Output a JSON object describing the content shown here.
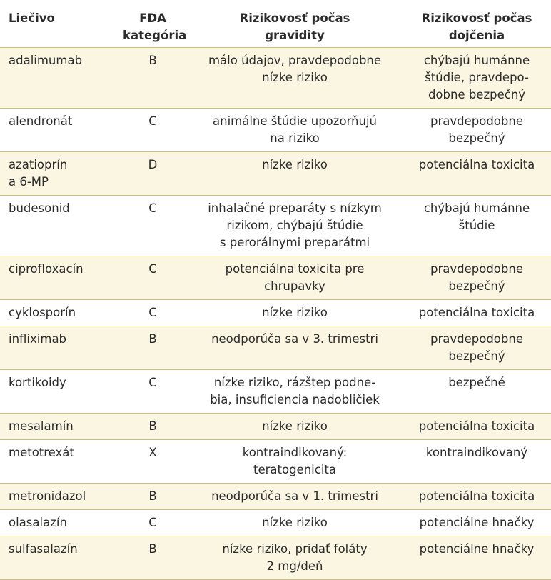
{
  "table": {
    "headers": {
      "drug": "Liečivo",
      "fda": [
        "FDA",
        "kategória"
      ],
      "pregnancy": [
        "Rizikovosť počas",
        "gravidity"
      ],
      "lactation": [
        "Rizikovosť počas",
        "dojčenia"
      ]
    },
    "rows": [
      {
        "drug": [
          "adalimumab"
        ],
        "fda": "B",
        "pregnancy": [
          "málo údajov, pravdepodobne",
          "nízke riziko"
        ],
        "lactation": [
          "chýbajú humánne",
          "štúdie, pravdepo-",
          "dobne bezpečný"
        ]
      },
      {
        "drug": [
          "alendronát"
        ],
        "fda": "C",
        "pregnancy": [
          "animálne štúdie upozorňujú",
          "na riziko"
        ],
        "lactation": [
          "pravdepodobne",
          "bezpečný"
        ]
      },
      {
        "drug": [
          "azatioprín",
          "a 6-MP"
        ],
        "fda": "D",
        "pregnancy": [
          "nízke riziko"
        ],
        "lactation": [
          "potenciálna toxicita"
        ]
      },
      {
        "drug": [
          "budesonid"
        ],
        "fda": "C",
        "pregnancy": [
          "inhalačné preparáty s nízkym",
          "rizikom, chýbajú štúdie",
          "s perorálnymi preparátmi"
        ],
        "lactation": [
          "chýbajú humánne",
          "štúdie"
        ]
      },
      {
        "drug": [
          "ciprofloxacín"
        ],
        "fda": "C",
        "pregnancy": [
          "potenciálna toxicita pre",
          "chrupavky"
        ],
        "lactation": [
          "pravdepodobne",
          "bezpečný"
        ]
      },
      {
        "drug": [
          "cyklosporín"
        ],
        "fda": "C",
        "pregnancy": [
          "nízke riziko"
        ],
        "lactation": [
          "potenciálna toxicita"
        ]
      },
      {
        "drug": [
          "infliximab"
        ],
        "fda": "B",
        "pregnancy": [
          "neodporúča sa v 3. trimestri"
        ],
        "lactation": [
          "pravdepodobne",
          "bezpečný"
        ]
      },
      {
        "drug": [
          "kortikoidy"
        ],
        "fda": "C",
        "pregnancy": [
          "nízke riziko, rázštep podne-",
          "bia, insuficiencia nadobličiek"
        ],
        "lactation": [
          "bezpečné"
        ]
      },
      {
        "drug": [
          "mesalamín"
        ],
        "fda": "B",
        "pregnancy": [
          "nízke riziko"
        ],
        "lactation": [
          "potenciálna toxicita"
        ]
      },
      {
        "drug": [
          "metotrexát"
        ],
        "fda": "X",
        "pregnancy": [
          "kontraindikovaný:",
          "teratogenicita"
        ],
        "lactation": [
          "kontraindikovaný"
        ]
      },
      {
        "drug": [
          "metronidazol"
        ],
        "fda": "B",
        "pregnancy": [
          "neodporúča sa v 1. trimestri"
        ],
        "lactation": [
          "potenciálna toxicita"
        ]
      },
      {
        "drug": [
          "olasalazín"
        ],
        "fda": "C",
        "pregnancy": [
          "nízke riziko"
        ],
        "lactation": [
          "potenciálne hnačky"
        ]
      },
      {
        "drug": [
          "sulfasalazín"
        ],
        "fda": "B",
        "pregnancy": [
          "nízke riziko, pridať foláty",
          "2 mg/deň"
        ],
        "lactation": [
          "potenciálne hnačky"
        ]
      }
    ]
  },
  "colors": {
    "stripe": "#fbf6e2",
    "rule": "#d0bf7a",
    "text": "#2b2b2b"
  }
}
